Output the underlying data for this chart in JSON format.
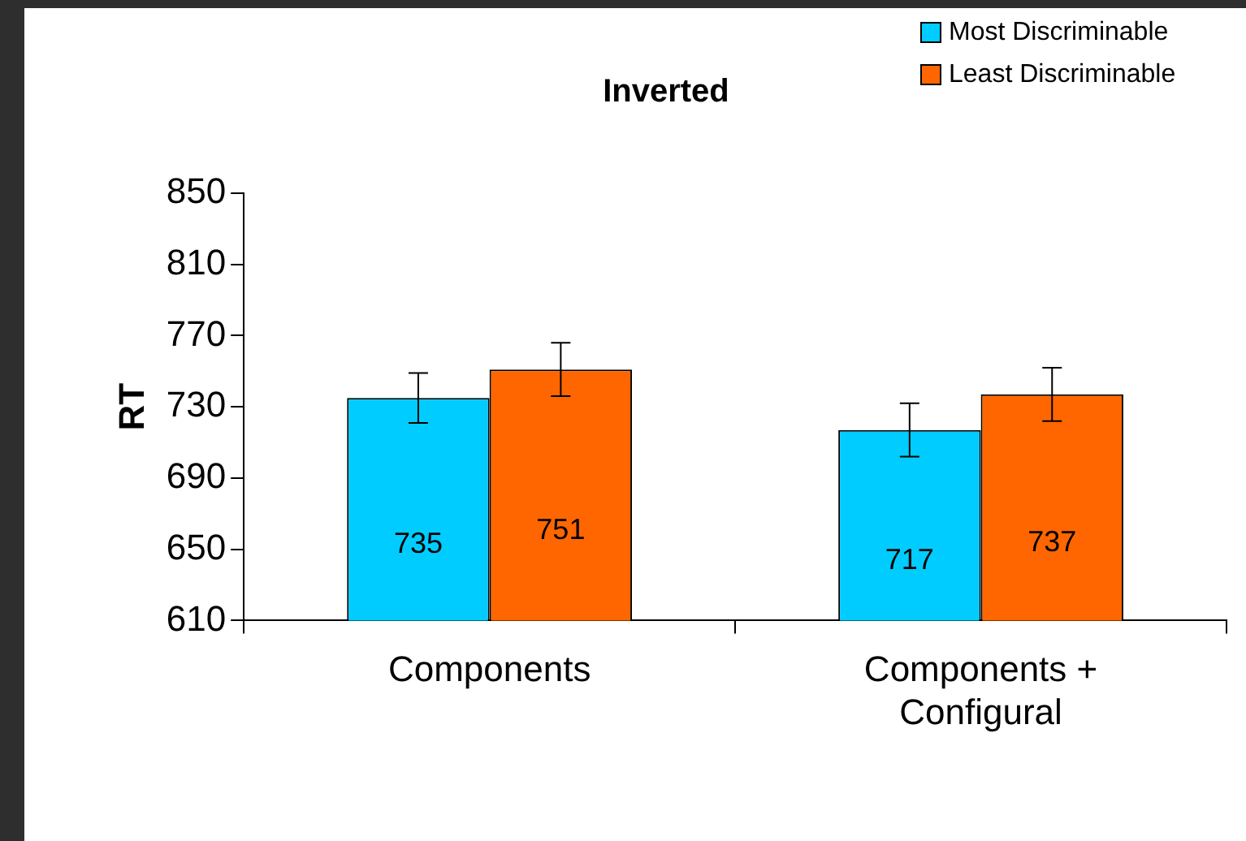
{
  "chart_data": {
    "type": "bar",
    "title": "Inverted",
    "ylabel": "RT",
    "categories": [
      "Components",
      "Components + Configural"
    ],
    "series": [
      {
        "name": "Most Discriminable",
        "color": "#00ccff",
        "values": [
          735,
          717
        ],
        "errors": [
          14,
          15
        ]
      },
      {
        "name": "Least Discriminable",
        "color": "#ff6600",
        "values": [
          751,
          737
        ],
        "errors": [
          15,
          15
        ]
      }
    ],
    "ylim": [
      610,
      850
    ],
    "yticks": [
      610,
      650,
      690,
      730,
      770,
      810,
      850
    ],
    "grid": false,
    "legend": "top right",
    "data_labels": true
  }
}
